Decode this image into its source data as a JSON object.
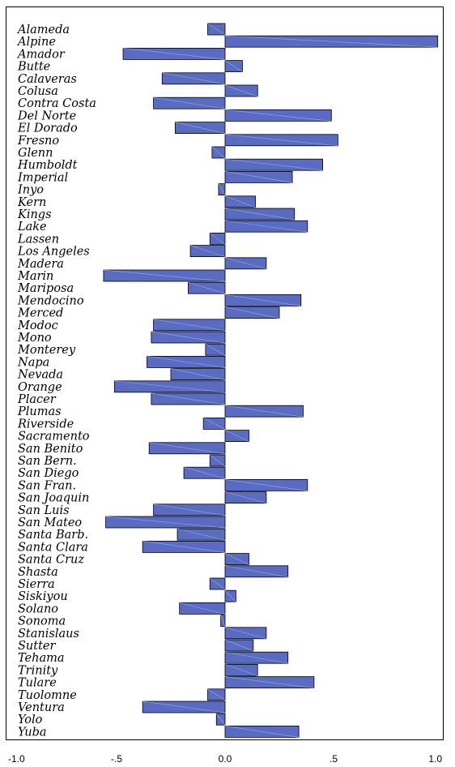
{
  "chart_data": {
    "type": "bar",
    "orientation": "horizontal",
    "title": "",
    "xlabel": "",
    "ylabel": "",
    "xlim": [
      -1.0,
      1.0
    ],
    "xticks": [
      {
        "value": -1.0,
        "label": "-1.0"
      },
      {
        "value": -0.5,
        "label": "-.5"
      },
      {
        "value": 0.0,
        "label": "0.0"
      },
      {
        "value": 0.5,
        "label": ".5"
      },
      {
        "value": 1.0,
        "label": "1.0"
      }
    ],
    "grid": false,
    "bar_color": "#5a6cc2",
    "categories": [
      "Alameda",
      "Alpine",
      "Amador",
      "Butte",
      "Calaveras",
      "Colusa",
      "Contra Costa",
      "Del Norte",
      "El Dorado",
      "Fresno",
      "Glenn",
      "Humboldt",
      "Imperial",
      "Inyo",
      "Kern",
      "Kings",
      "Lake",
      "Lassen",
      "Los Angeles",
      "Madera",
      "Marin",
      "Mariposa",
      "Mendocino",
      "Merced",
      "Modoc",
      "Mono",
      "Monterey",
      "Napa",
      "Nevada",
      "Orange",
      "Placer",
      "Plumas",
      "Riverside",
      "Sacramento",
      "San Benito",
      "San Bern.",
      "San Diego",
      "San Fran.",
      "San Joaquin",
      "San Luis",
      "San Mateo",
      "Santa Barb.",
      "Santa Clara",
      "Santa Cruz",
      "Shasta",
      "Sierra",
      "Siskiyou",
      "Solano",
      "Sonoma",
      "Stanislaus",
      "Sutter",
      "Tehama",
      "Trinity",
      "Tulare",
      "Tuolomne",
      "Ventura",
      "Yolo",
      "Yuba"
    ],
    "values": [
      -0.08,
      0.98,
      -0.47,
      0.08,
      -0.29,
      0.15,
      -0.33,
      0.49,
      -0.23,
      0.52,
      -0.06,
      0.45,
      0.31,
      -0.03,
      0.14,
      0.32,
      0.38,
      -0.07,
      -0.16,
      0.19,
      -0.56,
      -0.17,
      0.35,
      0.25,
      -0.33,
      -0.34,
      -0.09,
      -0.36,
      -0.25,
      -0.51,
      -0.34,
      0.36,
      -0.1,
      0.11,
      -0.35,
      -0.07,
      -0.19,
      0.38,
      0.19,
      -0.33,
      -0.55,
      -0.22,
      -0.38,
      0.11,
      0.29,
      -0.07,
      0.05,
      -0.21,
      -0.02,
      0.19,
      0.13,
      0.29,
      0.15,
      0.41,
      -0.08,
      -0.38,
      -0.04,
      0.34
    ]
  }
}
